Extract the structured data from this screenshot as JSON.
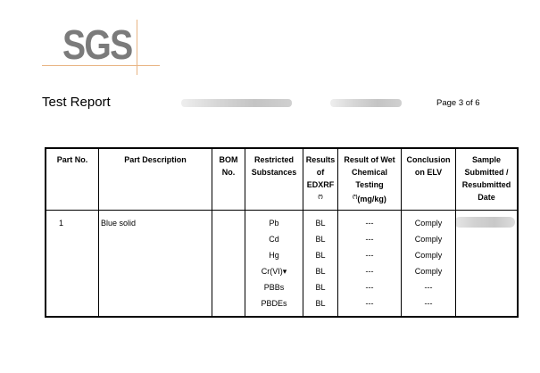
{
  "logo": "SGS",
  "header": {
    "title": "Test Report",
    "page": "Page 3 of 6"
  },
  "table": {
    "headers": {
      "part_no": "Part No.",
      "description": "Part Description",
      "bom": "BOM No.",
      "substances": "Restricted Substances",
      "edxrf": "Results of EDXRF",
      "edxrf_note": "(*)",
      "wet": "Result of Wet Chemical Testing",
      "wet_note": "(*)",
      "wet_unit": "(mg/kg)",
      "conclusion": "Conclusion on ELV",
      "date": "Sample Submitted / Resubmitted Date"
    },
    "part_no": "1",
    "description": "Blue solid",
    "rows": [
      {
        "substance": "Pb",
        "edxrf": "BL",
        "wet": "---",
        "conclusion": "Comply"
      },
      {
        "substance": "Cd",
        "edxrf": "BL",
        "wet": "---",
        "conclusion": "Comply"
      },
      {
        "substance": "Hg",
        "edxrf": "BL",
        "wet": "---",
        "conclusion": "Comply"
      },
      {
        "substance": "Cr(VI)▾",
        "edxrf": "BL",
        "wet": "---",
        "conclusion": "Comply"
      },
      {
        "substance": "PBBs",
        "edxrf": "BL",
        "wet": "---",
        "conclusion": "---"
      },
      {
        "substance": "PBDEs",
        "edxrf": "BL",
        "wet": "---",
        "conclusion": "---"
      }
    ]
  }
}
